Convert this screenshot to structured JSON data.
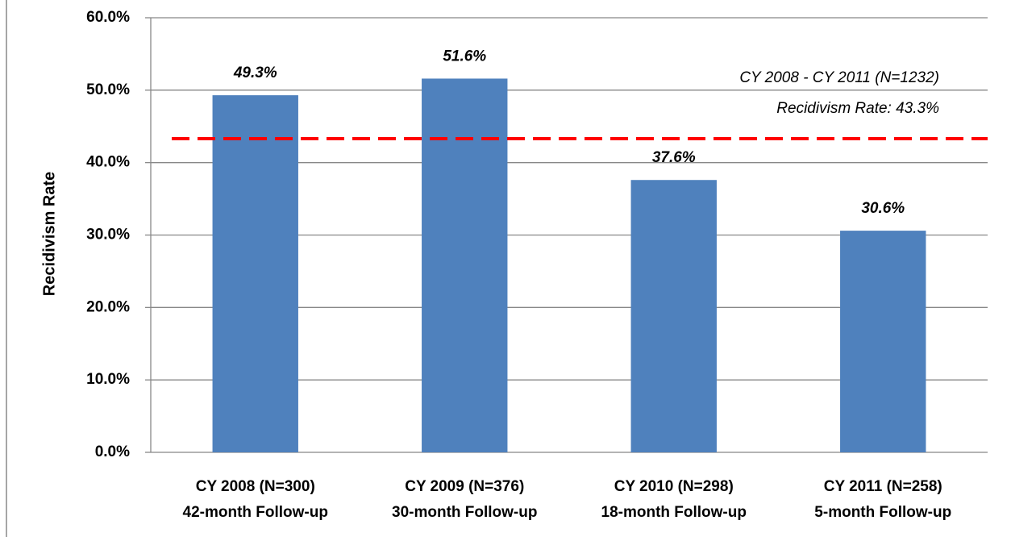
{
  "chart_data": {
    "type": "bar",
    "y_label": "Recidivism Rate",
    "categories": [
      [
        "CY 2008 (N=300)",
        "42-month Follow-up"
      ],
      [
        "CY 2009 (N=376)",
        "30-month Follow-up"
      ],
      [
        "CY 2010 (N=298)",
        "18-month Follow-up"
      ],
      [
        "CY 2011 (N=258)",
        "5-month Follow-up"
      ]
    ],
    "values": [
      49.3,
      51.6,
      37.6,
      30.6
    ],
    "value_labels": [
      "49.3%",
      "51.6%",
      "37.6%",
      "30.6%"
    ],
    "color": "#4f81bd",
    "ylim": [
      0,
      60
    ],
    "yticks": [
      {
        "value": 0,
        "label": "0.0%"
      },
      {
        "value": 10,
        "label": "10.0%"
      },
      {
        "value": 20,
        "label": "20.0%"
      },
      {
        "value": 30,
        "label": "30.0%"
      },
      {
        "value": 40,
        "label": "40.0%"
      },
      {
        "value": 50,
        "label": "50.0%"
      },
      {
        "value": 60,
        "label": "60.0%"
      }
    ],
    "grid": true,
    "reference_line": {
      "value": 43.3,
      "color": "#ff0000",
      "label": [
        "CY 2008 - CY 2011 (N=1232)",
        "Recidivism Rate: 43.3%"
      ]
    }
  }
}
